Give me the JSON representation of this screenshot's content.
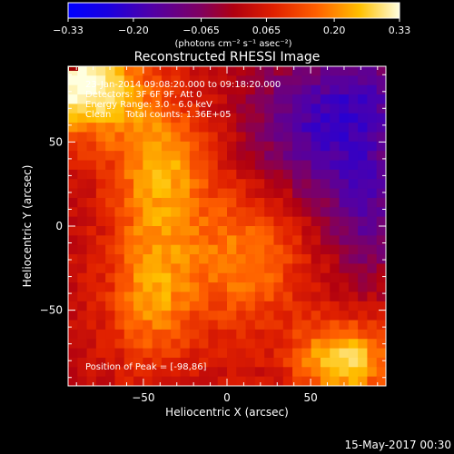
{
  "chart_data": {
    "type": "heatmap",
    "title": "Reconstructed RHESSI Image",
    "xlabel": "Heliocentric X (arcsec)",
    "ylabel": "Heliocentric Y (arcsec)",
    "xlim": [
      -95,
      95
    ],
    "ylim": [
      -95,
      95
    ],
    "x_ticks": [
      -50,
      0,
      50
    ],
    "y_ticks": [
      50,
      0,
      -50
    ],
    "tick_labels_x": [
      "−50",
      "0",
      "50"
    ],
    "tick_labels_y": [
      "50",
      "0",
      "−50"
    ],
    "colorbar": {
      "min": -0.33,
      "max": 0.33,
      "ticks": [
        -0.33,
        -0.2,
        -0.065,
        0.065,
        0.2,
        0.33
      ],
      "tick_labels": [
        "−0.33",
        "−0.20",
        "−0.065",
        "0.065",
        "0.20",
        "0.33"
      ],
      "unit_label": "(photons cm⁻² s⁻¹ asec⁻²)"
    },
    "info_lines": [
      "23-Jan-2014 09:08:20.000 to 09:18:20.000",
      "Detectors: 3F 6F 9F, Att 0",
      "Energy Range: 3.0 - 6.0 keV",
      "Clean     Total counts: 1.36E+05"
    ],
    "peak_text": "Position of Peak = [-98,86]",
    "peak": [
      -98,
      86
    ],
    "map": {
      "cols": 34,
      "rows": 34,
      "sources": [
        {
          "x": -85,
          "y": 85,
          "amp": 0.32,
          "sx": 22,
          "sy": 22
        },
        {
          "x": -40,
          "y": 35,
          "amp": 0.2,
          "sx": 20,
          "sy": 30
        },
        {
          "x": -45,
          "y": -40,
          "amp": 0.18,
          "sx": 18,
          "sy": 30
        },
        {
          "x": 10,
          "y": -20,
          "amp": 0.16,
          "sx": 25,
          "sy": 30
        },
        {
          "x": 70,
          "y": -80,
          "amp": 0.26,
          "sx": 20,
          "sy": 16
        },
        {
          "x": 55,
          "y": 60,
          "amp": -0.2,
          "sx": 28,
          "sy": 30
        },
        {
          "x": 85,
          "y": 10,
          "amp": -0.15,
          "sx": 18,
          "sy": 30
        },
        {
          "x": 90,
          "y": 80,
          "amp": -0.1,
          "sx": 20,
          "sy": 20
        }
      ],
      "base": 0.03
    }
  },
  "footer_timestamp": "15-May-2017 00:30"
}
